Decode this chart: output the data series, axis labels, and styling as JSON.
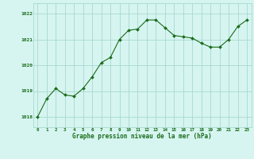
{
  "hours": [
    0,
    1,
    2,
    3,
    4,
    5,
    6,
    7,
    8,
    9,
    10,
    11,
    12,
    13,
    14,
    15,
    16,
    17,
    18,
    19,
    20,
    21,
    22,
    23
  ],
  "pressure": [
    1018.0,
    1018.7,
    1019.1,
    1018.85,
    1018.8,
    1019.1,
    1019.55,
    1020.1,
    1020.3,
    1021.0,
    1021.35,
    1021.4,
    1021.75,
    1021.75,
    1021.45,
    1021.15,
    1021.1,
    1021.05,
    1020.85,
    1020.7,
    1020.7,
    1021.0,
    1021.5,
    1021.75
  ],
  "line_color": "#1a6b1a",
  "marker_color": "#1a6b1a",
  "bg_color": "#d6f5f0",
  "grid_color": "#a8d8d0",
  "tick_color": "#1a6b1a",
  "xlabel": "Graphe pression niveau de la mer (hPa)",
  "xlabel_color": "#1a6b1a",
  "ylabel_ticks": [
    1018,
    1019,
    1020,
    1021,
    1022
  ],
  "ylim": [
    1017.6,
    1022.4
  ],
  "xlim": [
    -0.5,
    23.5
  ]
}
